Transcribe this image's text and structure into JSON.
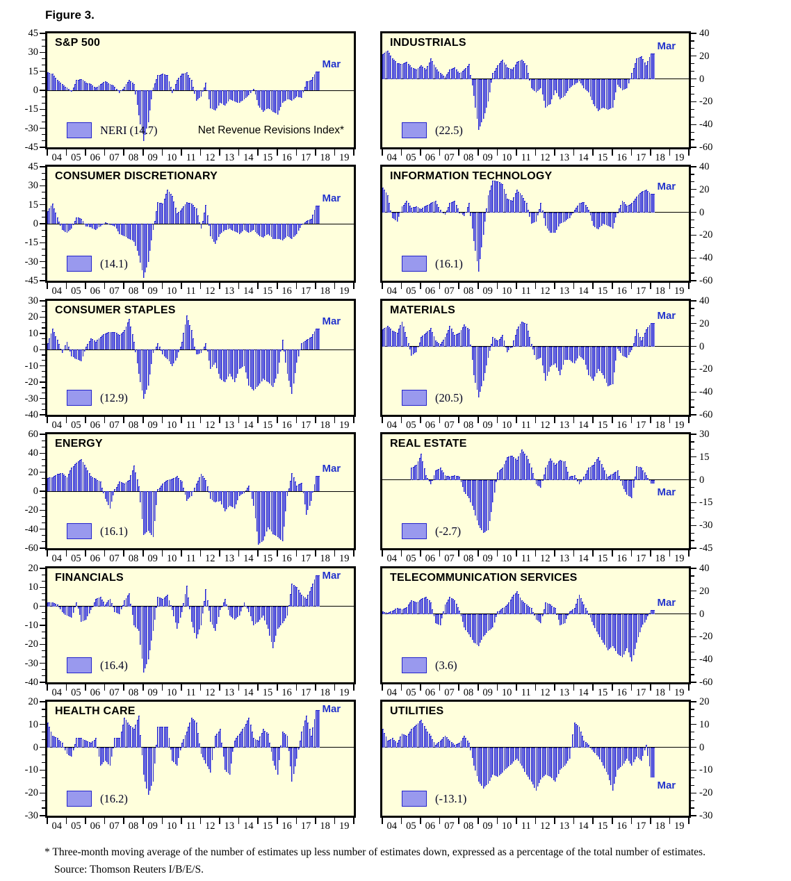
{
  "figure": {
    "title": "Figure 3.",
    "footnote_line1": "* Three-month moving average of the number of estimates up less number of estimates down, expressed as a percentage of the total number of estimates.",
    "footnote_line2": "Source: Thomson Reuters I/B/E/S."
  },
  "style": {
    "panel_bg": "#FFFFDC",
    "bar_fill": "#9999EE",
    "bar_edge": "#2222CC",
    "accent_blue": "#2233CC",
    "border_black": "#000000"
  },
  "x_year_labels": [
    "04",
    "05",
    "06",
    "07",
    "08",
    "09",
    "10",
    "11",
    "12",
    "13",
    "14",
    "15",
    "16",
    "17",
    "18",
    "19"
  ],
  "chart_data": [
    {
      "type": "bar",
      "title": "S&P 500",
      "axis_side": "left",
      "ylim": [
        -45,
        45
      ],
      "y_step": 15,
      "legend_label": "NERI (14.7)",
      "legend_note": "Net Revenue Revisions Index*",
      "latest_label": "Mar",
      "latest_value": 14.7,
      "x_quarters": "2004Q1-2018Q1",
      "values": [
        14,
        13,
        8,
        5,
        2,
        -1,
        8,
        9,
        6,
        5,
        2,
        5,
        7,
        5,
        3,
        -2,
        3,
        8,
        5,
        -20,
        -40,
        -25,
        2,
        12,
        13,
        12,
        -2,
        8,
        13,
        14,
        8,
        -8,
        -5,
        6,
        -14,
        -16,
        -10,
        -12,
        -7,
        -9,
        -10,
        -7,
        -4,
        1,
        -12,
        -17,
        -14,
        -17,
        -19,
        -10,
        -7,
        -8,
        -5,
        -6,
        7,
        8,
        14.7
      ]
    },
    {
      "type": "bar",
      "title": "INDUSTRIALS",
      "axis_side": "right",
      "ylim": [
        -60,
        40
      ],
      "y_step": 20,
      "legend_label": "(22.5)",
      "legend_note": "",
      "latest_label": "Mar",
      "latest_value": 22.5,
      "x_quarters": "2004Q1-2018Q1",
      "values": [
        22,
        25,
        18,
        14,
        13,
        15,
        10,
        8,
        12,
        8,
        18,
        10,
        5,
        2,
        8,
        10,
        5,
        8,
        13,
        -15,
        -45,
        -35,
        -20,
        5,
        12,
        17,
        10,
        8,
        15,
        17,
        12,
        -8,
        -12,
        -8,
        -25,
        -22,
        -10,
        -18,
        -15,
        -8,
        -5,
        -2,
        -8,
        -12,
        -22,
        -28,
        -25,
        -27,
        -25,
        -5,
        -10,
        -8,
        5,
        18,
        20,
        12,
        22.5
      ]
    },
    {
      "type": "bar",
      "title": "CONSUMER DISCRETIONARY",
      "axis_side": "left",
      "ylim": [
        -45,
        45
      ],
      "y_step": 15,
      "legend_label": "(14.1)",
      "legend_note": "",
      "latest_label": "Mar",
      "latest_value": 14.1,
      "x_quarters": "2004Q1-2018Q1",
      "values": [
        10,
        16,
        5,
        -5,
        -7,
        -4,
        5,
        4,
        -2,
        -3,
        -5,
        -2,
        1,
        -1,
        -2,
        -8,
        -10,
        -12,
        -14,
        -25,
        -43,
        -30,
        -5,
        17,
        16,
        27,
        22,
        8,
        12,
        17,
        16,
        12,
        -4,
        15,
        -10,
        -16,
        -8,
        -5,
        -4,
        -6,
        -8,
        -5,
        -7,
        -5,
        -9,
        -11,
        -8,
        -12,
        -12,
        -13,
        -10,
        -12,
        -8,
        -1,
        2,
        4,
        14.1
      ]
    },
    {
      "type": "bar",
      "title": "INFORMATION TECHNOLOGY",
      "axis_side": "right",
      "ylim": [
        -60,
        40
      ],
      "y_step": 20,
      "legend_label": "(16.1)",
      "legend_note": "",
      "latest_label": "Mar",
      "latest_value": 16.1,
      "x_quarters": "2004Q1-2018Q1",
      "values": [
        22,
        15,
        -5,
        -8,
        5,
        10,
        4,
        5,
        3,
        6,
        8,
        10,
        2,
        -2,
        8,
        10,
        0,
        -3,
        8,
        -25,
        -52,
        -20,
        15,
        28,
        27,
        25,
        12,
        10,
        20,
        15,
        8,
        -10,
        -8,
        8,
        -12,
        -18,
        -18,
        -10,
        -8,
        -5,
        2,
        8,
        9,
        2,
        -12,
        -15,
        -10,
        -12,
        -14,
        0,
        10,
        6,
        8,
        14,
        18,
        20,
        16.1
      ]
    },
    {
      "type": "bar",
      "title": "CONSUMER STAPLES",
      "axis_side": "left",
      "ylim": [
        -40,
        30
      ],
      "y_step": 10,
      "legend_label": "(12.9)",
      "legend_note": "",
      "latest_label": "Mar",
      "latest_value": 12.9,
      "x_quarters": "2004Q1-2018Q1",
      "values": [
        4,
        13,
        6,
        -2,
        5,
        -4,
        -6,
        -7,
        2,
        7,
        5,
        8,
        10,
        11,
        11,
        9,
        12,
        19,
        5,
        -15,
        -30,
        -22,
        -2,
        4,
        -3,
        -6,
        -10,
        -5,
        5,
        21,
        12,
        -3,
        -2,
        4,
        -12,
        -8,
        -18,
        -20,
        -15,
        -20,
        -12,
        -10,
        -22,
        -25,
        -22,
        -18,
        -20,
        -23,
        -15,
        6,
        -15,
        -27,
        -8,
        4,
        6,
        8,
        12.9
      ]
    },
    {
      "type": "bar",
      "title": "MATERIALS",
      "axis_side": "right",
      "ylim": [
        -60,
        40
      ],
      "y_step": 20,
      "legend_label": "(20.5)",
      "legend_note": "",
      "latest_label": "Mar",
      "latest_value": 20.5,
      "x_quarters": "2004Q1-2018Q1",
      "values": [
        15,
        18,
        14,
        12,
        22,
        8,
        -8,
        -5,
        8,
        12,
        16,
        5,
        2,
        8,
        18,
        10,
        12,
        19,
        15,
        -25,
        -45,
        -30,
        -10,
        8,
        5,
        10,
        -5,
        0,
        15,
        22,
        20,
        2,
        -12,
        -10,
        -30,
        -18,
        -15,
        -25,
        -12,
        -12,
        -15,
        -8,
        -12,
        -25,
        -30,
        -20,
        -25,
        -35,
        -33,
        -2,
        -8,
        -10,
        -3,
        15,
        5,
        15,
        20.5
      ]
    },
    {
      "type": "bar",
      "title": "ENERGY",
      "axis_side": "left",
      "ylim": [
        -60,
        60
      ],
      "y_step": 20,
      "legend_label": "(16.1)",
      "legend_note": "",
      "latest_label": "Mar",
      "latest_value": 16.1,
      "x_quarters": "2004Q1-2018Q1",
      "values": [
        14,
        15,
        18,
        19,
        15,
        25,
        30,
        34,
        25,
        16,
        13,
        10,
        -8,
        -18,
        2,
        10,
        8,
        12,
        27,
        5,
        -46,
        -42,
        -48,
        2,
        8,
        12,
        13,
        16,
        10,
        -10,
        -5,
        8,
        18,
        12,
        -8,
        -12,
        -10,
        -21,
        -15,
        -18,
        -5,
        -2,
        6,
        -15,
        -56,
        -52,
        -38,
        -45,
        -48,
        -53,
        -5,
        19,
        6,
        9,
        -25,
        -10,
        16.1
      ]
    },
    {
      "type": "bar",
      "title": "REAL ESTATE",
      "axis_side": "right",
      "ylim": [
        -45,
        30
      ],
      "y_step": 15,
      "legend_label": "(-2.7)",
      "legend_note": "",
      "latest_label": "Mar",
      "latest_value": -2.7,
      "x_quarters": "2004Q1-2018Q1 (data begins 2005Q3)",
      "values": [
        null,
        null,
        null,
        null,
        null,
        null,
        8,
        10,
        17,
        3,
        -3,
        6,
        8,
        3,
        2,
        3,
        2,
        -8,
        -12,
        -20,
        -30,
        -35,
        -33,
        -15,
        5,
        8,
        15,
        16,
        13,
        20,
        16,
        8,
        -3,
        -5,
        8,
        14,
        10,
        13,
        12,
        2,
        3,
        -3,
        2,
        8,
        10,
        15,
        8,
        2,
        4,
        6,
        -4,
        -10,
        -12,
        9,
        8,
        3,
        -2.7
      ]
    },
    {
      "type": "bar",
      "title": "FINANCIALS",
      "axis_side": "left",
      "ylim": [
        -40,
        20
      ],
      "y_step": 10,
      "legend_label": "(16.4)",
      "legend_note": "",
      "latest_label": "Mar",
      "latest_value": 16.4,
      "x_quarters": "2004Q1-2018Q1",
      "values": [
        2,
        2,
        1,
        -3,
        -5,
        -6,
        2,
        -8,
        -7,
        -2,
        4,
        5,
        1,
        4,
        -3,
        -4,
        3,
        7,
        -10,
        -13,
        -35,
        -28,
        -13,
        5,
        4,
        6,
        -2,
        -12,
        -3,
        11,
        -8,
        -17,
        -10,
        9,
        -8,
        -13,
        -2,
        4,
        -5,
        -7,
        -5,
        2,
        -3,
        -10,
        -8,
        -5,
        -12,
        -22,
        -12,
        -9,
        -5,
        12,
        10,
        6,
        4,
        10,
        16.4
      ]
    },
    {
      "type": "bar",
      "title": "TELECOMMUNICATION SERVICES",
      "axis_side": "right",
      "ylim": [
        -60,
        40
      ],
      "y_step": 20,
      "legend_label": "(3.6)",
      "legend_note": "",
      "latest_label": "Mar",
      "latest_value": 3.6,
      "x_quarters": "2004Q1-2018Q1",
      "values": [
        2,
        1,
        3,
        5,
        4,
        6,
        12,
        10,
        13,
        15,
        10,
        -8,
        -10,
        8,
        15,
        12,
        3,
        -12,
        -18,
        -25,
        -28,
        -20,
        -15,
        -12,
        2,
        5,
        8,
        15,
        20,
        12,
        8,
        5,
        -5,
        -8,
        10,
        8,
        5,
        -10,
        -8,
        2,
        5,
        17,
        8,
        0,
        -10,
        -18,
        -25,
        -32,
        -28,
        -35,
        -38,
        -30,
        -42,
        -25,
        -12,
        -5,
        3.6
      ]
    },
    {
      "type": "bar",
      "title": "HEALTH CARE",
      "axis_side": "left",
      "ylim": [
        -30,
        20
      ],
      "y_step": 10,
      "legend_label": "(16.2)",
      "legend_note": "",
      "latest_label": "Mar",
      "latest_value": 16.2,
      "x_quarters": "2004Q1-2018Q1",
      "values": [
        11,
        5,
        4,
        2,
        -3,
        -4,
        4,
        4,
        3,
        2,
        4,
        -8,
        -6,
        -8,
        4,
        4,
        13,
        10,
        8,
        14,
        -12,
        -21,
        -15,
        9,
        9,
        9,
        -6,
        -8,
        2,
        7,
        13,
        11,
        -3,
        -7,
        -11,
        5,
        8,
        -10,
        -12,
        3,
        6,
        9,
        13,
        4,
        3,
        8,
        6,
        -6,
        -12,
        7,
        5,
        -15,
        -5,
        7,
        14,
        5,
        16.2
      ]
    },
    {
      "type": "bar",
      "title": "UTILITIES",
      "axis_side": "right",
      "ylim": [
        -30,
        20
      ],
      "y_step": 10,
      "legend_label": "(-13.1)",
      "legend_note": "",
      "latest_label": "Mar",
      "latest_value": -13.1,
      "x_quarters": "2004Q1-2018Q1",
      "values": [
        8,
        3,
        4,
        2,
        6,
        5,
        8,
        10,
        12,
        8,
        5,
        1,
        3,
        5,
        3,
        1,
        2,
        5,
        2,
        -8,
        -15,
        -18,
        -16,
        -12,
        -13,
        -11,
        -9,
        -7,
        -5,
        -8,
        -12,
        -15,
        -19,
        -14,
        -12,
        -13,
        -15,
        -10,
        -8,
        -5,
        11,
        9,
        3,
        1,
        -2,
        -4,
        -8,
        -12,
        -19,
        -10,
        -8,
        -5,
        -8,
        -4,
        -6,
        1,
        -13.1
      ]
    }
  ]
}
